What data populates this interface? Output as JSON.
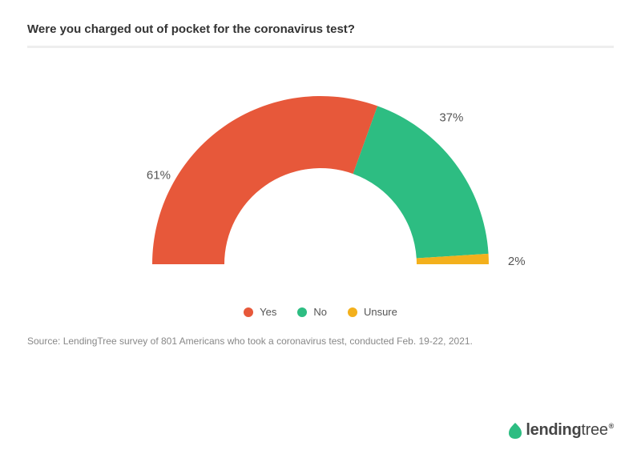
{
  "title": "Were you charged out of pocket for the coronavirus test?",
  "chart": {
    "type": "semi-donut",
    "background_color": "#ffffff",
    "divider_color": "#eeeeee",
    "title_color": "#333333",
    "title_fontsize": 15,
    "label_fontsize": 15,
    "label_color": "#555555",
    "inner_radius": 120,
    "outer_radius": 210,
    "segments": [
      {
        "label": "Yes",
        "value": 61,
        "display": "61%",
        "color": "#e7583a"
      },
      {
        "label": "No",
        "value": 37,
        "display": "37%",
        "color": "#2dbd82"
      },
      {
        "label": "Unsure",
        "value": 2,
        "display": "2%",
        "color": "#f3b01c"
      }
    ]
  },
  "legend": {
    "text_color": "#555555",
    "fontsize": 13
  },
  "source": "Source: LendingTree survey of 801 Americans who took a coronavirus test, conducted Feb. 19-22, 2021.",
  "source_color": "#888888",
  "logo": {
    "text1": "lending",
    "text2": "tree",
    "leaf_color": "#2dbd82",
    "text_color": "#454545"
  }
}
